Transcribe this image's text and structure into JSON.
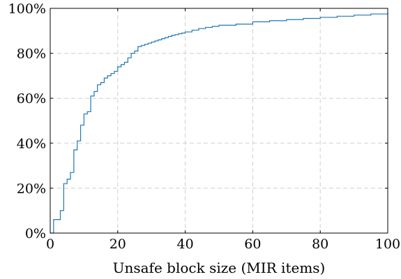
{
  "chart_data": {
    "type": "line",
    "step": true,
    "title": "",
    "xlabel": "Unsafe block size (MIR items)",
    "ylabel": "",
    "xlim": [
      0,
      100
    ],
    "ylim": [
      0,
      100
    ],
    "x_ticks": [
      0,
      20,
      40,
      60,
      80,
      100
    ],
    "x_tick_labels": [
      "0",
      "20",
      "40",
      "60",
      "80",
      "100"
    ],
    "y_ticks": [
      0,
      20,
      40,
      60,
      80,
      100
    ],
    "y_tick_labels": [
      "0%",
      "20%",
      "40%",
      "60%",
      "80%",
      "100%"
    ],
    "grid": true,
    "series": [
      {
        "color": "#1f77b4",
        "x": [
          0,
          1,
          3,
          4,
          5,
          6,
          7,
          8,
          9,
          10,
          11,
          12,
          13,
          14,
          15,
          16,
          17,
          18,
          19,
          20,
          21,
          22,
          23,
          24,
          25,
          26,
          27,
          28,
          29,
          30,
          31,
          32,
          33,
          34,
          35,
          36,
          37,
          38,
          39,
          40,
          42,
          44,
          46,
          48,
          50,
          55,
          60,
          65,
          70,
          75,
          80,
          85,
          90,
          95,
          100
        ],
        "y": [
          0,
          6,
          10,
          22,
          24,
          27,
          37,
          41,
          48,
          53,
          54,
          61,
          63,
          66,
          67,
          69,
          70,
          71,
          72,
          74,
          75,
          76,
          78,
          80,
          81,
          83,
          83.5,
          84,
          84.5,
          85,
          85.5,
          86,
          86.5,
          87,
          87.5,
          88,
          88.3,
          88.7,
          89,
          89.5,
          90.3,
          91,
          91.5,
          92,
          92.5,
          93,
          94,
          94.5,
          95,
          95.5,
          96,
          96.5,
          97,
          97.5,
          98
        ]
      }
    ]
  }
}
